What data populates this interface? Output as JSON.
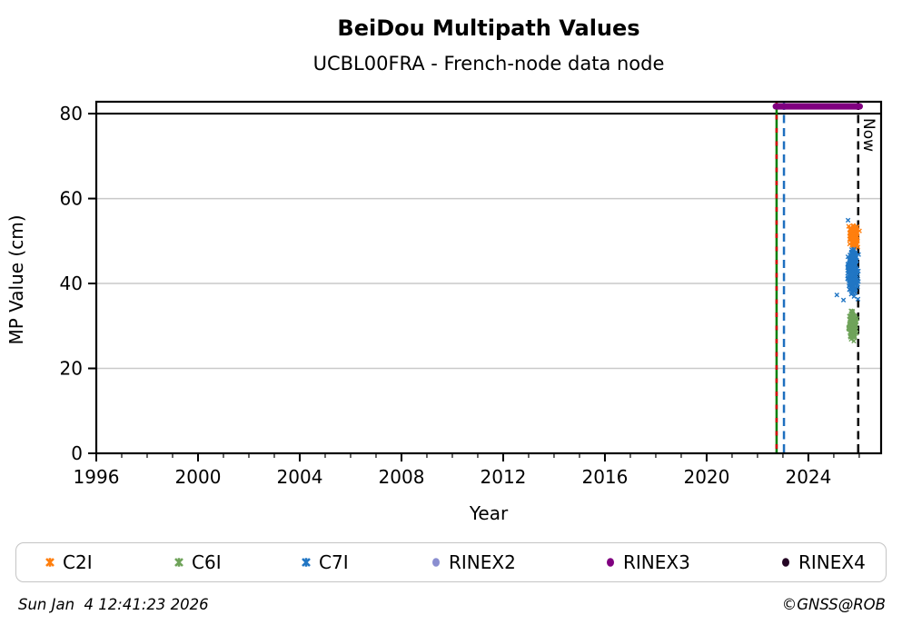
{
  "header": {
    "title": "BeiDou Multipath Values",
    "subtitle": "UCBL00FRA - French-node data node"
  },
  "footer": {
    "timestamp": "Sun Jan  4 12:41:23 2026",
    "credit": "©GNSS@ROB"
  },
  "legend": {
    "position": "bottom",
    "items": [
      {
        "label": "C2I",
        "marker": "x",
        "color": "#ff7f0e"
      },
      {
        "label": "C6I",
        "marker": "x",
        "color": "#6fa35a"
      },
      {
        "label": "C7I",
        "marker": "x",
        "color": "#2176c4"
      },
      {
        "label": "RINEX2",
        "marker": "circle",
        "color": "#8a8ed0"
      },
      {
        "label": "RINEX3",
        "marker": "circle",
        "color": "#800080"
      },
      {
        "label": "RINEX4",
        "marker": "circle",
        "color": "#240524"
      }
    ]
  },
  "chart_data": {
    "type": "scatter",
    "title": "BeiDou Multipath Values",
    "subtitle": "UCBL00FRA - French-node data node",
    "xlabel": "Year",
    "ylabel": "MP Value (cm)",
    "xlim": [
      1996,
      2026.86
    ],
    "ylim": [
      0,
      82.8
    ],
    "x_ticks": [
      1996,
      2000,
      2004,
      2008,
      2012,
      2016,
      2020,
      2024
    ],
    "x_minor_step": 1,
    "y_ticks": [
      0,
      20,
      40,
      60,
      80
    ],
    "grid": {
      "horizontal": true,
      "vertical": false,
      "color": "#c9c9c9"
    },
    "hline": {
      "y": 80,
      "color": "#000000"
    },
    "event_lines": [
      {
        "x": 2022.75,
        "style": "solid",
        "color": "#008000",
        "label": ""
      },
      {
        "x": 2022.75,
        "style": "sparse-dashed",
        "color": "#d40000",
        "label": ""
      },
      {
        "x": 2023.04,
        "style": "dashed",
        "color": "#1e6fbf",
        "label": ""
      },
      {
        "x": 2025.96,
        "style": "dashed",
        "color": "#000000",
        "label": "Now"
      }
    ],
    "series": [
      {
        "name": "C2I",
        "marker": "x",
        "color": "#ff7f0e",
        "cluster": {
          "seed": 11,
          "n": 170,
          "cx": 2025.8,
          "cy": 51.2,
          "xsd": 0.085,
          "ysd": 1.05,
          "ymin": 48.5,
          "ymax": 53.6,
          "xmin": 2025.42,
          "xmax": 2026.05
        },
        "outliers": []
      },
      {
        "name": "C6I",
        "marker": "x",
        "color": "#6fa35a",
        "cluster": {
          "seed": 22,
          "n": 150,
          "cx": 2025.74,
          "cy": 30.3,
          "xsd": 0.065,
          "ysd": 1.55,
          "ymin": 26.3,
          "ymax": 34.0,
          "xmin": 2025.45,
          "xmax": 2026.0
        },
        "outliers": []
      },
      {
        "name": "C7I",
        "marker": "x",
        "color": "#2176c4",
        "cluster": {
          "seed": 33,
          "n": 230,
          "cx": 2025.74,
          "cy": 42.8,
          "xsd": 0.095,
          "ysd": 2.4,
          "ymin": 35.8,
          "ymax": 48.8,
          "xmin": 2025.42,
          "xmax": 2026.02
        },
        "outliers": [
          [
            2025.56,
            54.9
          ],
          [
            2025.12,
            37.3
          ],
          [
            2025.38,
            36.1
          ]
        ]
      },
      {
        "name": "RINEX2",
        "marker": "circle",
        "color": "#8a8ed0",
        "points": []
      },
      {
        "name": "RINEX3",
        "marker": "circle",
        "color": "#800080",
        "bar": {
          "x_start": 2022.72,
          "x_end": 2026.02,
          "y": 81.7,
          "thickness_cm": 1.5
        }
      },
      {
        "name": "RINEX4",
        "marker": "circle",
        "color": "#240524",
        "points": []
      }
    ]
  }
}
